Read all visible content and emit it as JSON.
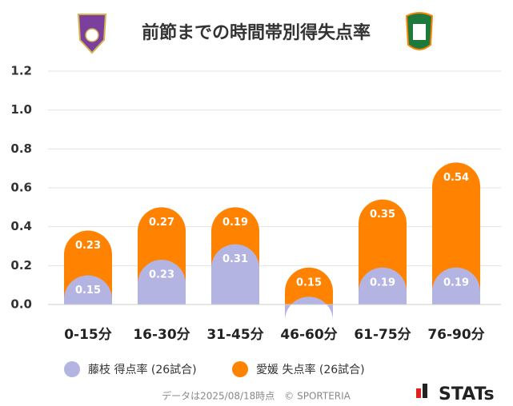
{
  "chart_data": {
    "type": "stacked-bar",
    "title": "前節までの時間帯別得失点率",
    "categories": [
      "0-15分",
      "16-30分",
      "31-45分",
      "46-60分",
      "61-75分",
      "76-90分"
    ],
    "series": [
      {
        "name": "藤枝 得点率 (26試合)",
        "color": "#b4b4e2",
        "values": [
          0.15,
          0.23,
          0.31,
          0.04,
          0.19,
          0.19
        ]
      },
      {
        "name": "愛媛 失点率 (26試合)",
        "color": "#ff8200",
        "values": [
          0.23,
          0.27,
          0.19,
          0.15,
          0.35,
          0.54
        ]
      }
    ],
    "ylim": [
      0,
      1.2
    ],
    "yticks": [
      {
        "value": 0,
        "label": "0.0"
      },
      0.2,
      0.4,
      0.6,
      0.8,
      {
        "value": 1,
        "label": "1.0"
      },
      1.2
    ],
    "grid": true,
    "footnote": "データは2025/08/18時点　© SPORTERIA",
    "brand": "STATs"
  }
}
